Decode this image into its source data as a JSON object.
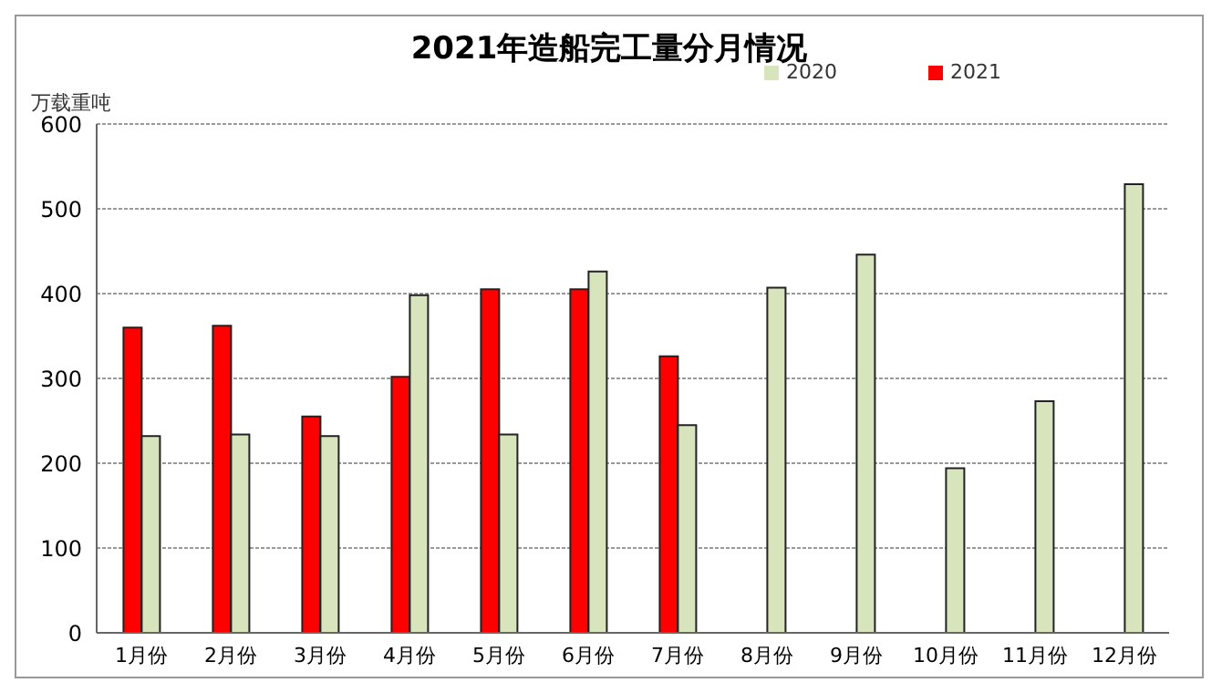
{
  "chart_data": {
    "type": "bar",
    "title": "2021年造船完工量分月情况",
    "ylabel": "万载重吨",
    "categories": [
      "1月份",
      "2月份",
      "3月份",
      "4月份",
      "5月份",
      "6月份",
      "7月份",
      "8月份",
      "9月份",
      "10月份",
      "11月份",
      "12月份"
    ],
    "series": [
      {
        "name": "2021",
        "color": "#ff0000",
        "values": [
          360,
          362,
          255,
          302,
          405,
          405,
          326,
          null,
          null,
          null,
          null,
          null
        ]
      },
      {
        "name": "2020",
        "color": "#d8e4bc",
        "values": [
          232,
          234,
          232,
          398,
          234,
          426,
          245,
          407,
          446,
          194,
          273,
          529
        ]
      }
    ],
    "ylim": [
      0,
      600
    ],
    "yticks": [
      0,
      100,
      200,
      300,
      400,
      500,
      600
    ],
    "grid": "y",
    "legend": "top right"
  }
}
